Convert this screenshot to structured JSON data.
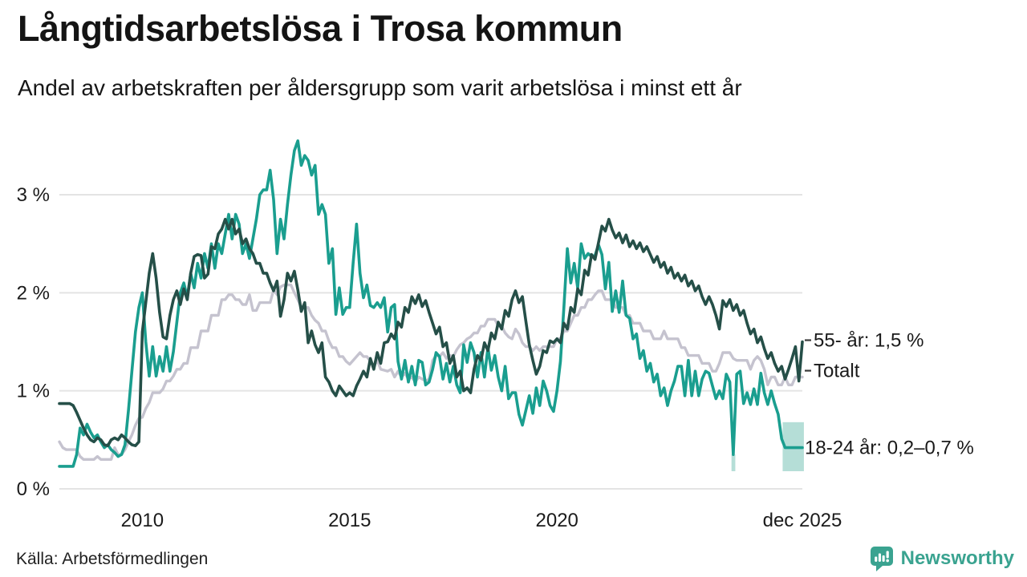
{
  "header": {
    "title": "Långtidsarbetslösa i Trosa kommun",
    "subtitle": "Andel av arbetskraften per åldersgrupp som varit arbetslösa i minst ett år"
  },
  "footer": {
    "source": "Källa: Arbetsförmedlingen",
    "brand": "Newsworthy"
  },
  "colors": {
    "youth": "#1a9e8f",
    "older": "#254f48",
    "total": "#c5c3cf",
    "band": "#b5ded7",
    "grid": "#e4e4e4",
    "axis_text": "#1b1b1b",
    "annotation_text": "#1a1a1a",
    "annotation_dash": "#3a3a3a",
    "brand_teal": "#3aa390",
    "text": "#141414"
  },
  "chart_data": {
    "type": "line",
    "title": "Långtidsarbetslösa i Trosa kommun",
    "subtitle": "Andel av arbetskraften per åldersgrupp som varit arbetslösa i minst ett år",
    "unit": "%",
    "frequency": "monthly",
    "x_start": "2008-01",
    "x_end": "2025-12",
    "ylim": [
      0,
      3.6
    ],
    "grid": true,
    "yticks": [
      {
        "value": 0,
        "label": "0 %"
      },
      {
        "value": 1,
        "label": "1 %"
      },
      {
        "value": 2,
        "label": "2 %"
      },
      {
        "value": 3,
        "label": "3 %"
      }
    ],
    "xticks": [
      {
        "t": 2010.0,
        "label": "2010"
      },
      {
        "t": 2015.0,
        "label": "2015"
      },
      {
        "t": 2020.0,
        "label": "2020"
      },
      {
        "t": 2025.9167,
        "label": "dec 2025"
      }
    ],
    "series": [
      {
        "name": "Totalt",
        "color_key": "total",
        "stroke_width": 3.4,
        "values": [
          0.48,
          0.42,
          0.4,
          0.4,
          0.4,
          0.4,
          0.33,
          0.3,
          0.3,
          0.3,
          0.3,
          0.33,
          0.3,
          0.3,
          0.3,
          0.3,
          0.42,
          0.35,
          0.35,
          0.4,
          0.48,
          0.55,
          0.65,
          0.72,
          0.73,
          0.82,
          0.88,
          0.98,
          0.98,
          0.98,
          1.02,
          1.1,
          1.1,
          1.15,
          1.22,
          1.22,
          1.28,
          1.28,
          1.44,
          1.44,
          1.44,
          1.61,
          1.61,
          1.61,
          1.77,
          1.77,
          1.77,
          1.93,
          1.93,
          1.98,
          1.98,
          1.93,
          1.93,
          1.88,
          1.88,
          1.98,
          1.82,
          1.82,
          1.9,
          1.9,
          1.9,
          1.9,
          2.03,
          1.98,
          2.06,
          2.08,
          2.08,
          2.08,
          2.0,
          1.93,
          1.85,
          1.85,
          1.85,
          1.77,
          1.72,
          1.69,
          1.61,
          1.61,
          1.51,
          1.44,
          1.44,
          1.35,
          1.35,
          1.3,
          1.27,
          1.31,
          1.35,
          1.39,
          1.35,
          1.35,
          1.3,
          1.25,
          1.31,
          1.22,
          1.21,
          1.2,
          1.22,
          1.14,
          1.2,
          1.14,
          1.18,
          1.12,
          1.14,
          1.09,
          1.14,
          1.12,
          1.1,
          1.12,
          1.31,
          1.36,
          1.35,
          1.39,
          1.33,
          1.36,
          1.35,
          1.42,
          1.47,
          1.49,
          1.53,
          1.55,
          1.59,
          1.59,
          1.66,
          1.66,
          1.73,
          1.73,
          1.73,
          1.66,
          1.66,
          1.59,
          1.55,
          1.53,
          1.63,
          1.58,
          1.49,
          1.45,
          1.45,
          1.41,
          1.45,
          1.41,
          1.45,
          1.45,
          1.45,
          1.45,
          1.53,
          1.53,
          1.61,
          1.61,
          1.69,
          1.77,
          1.77,
          1.85,
          1.85,
          1.93,
          1.93,
          1.98,
          2.02,
          2.02,
          1.93,
          1.93,
          1.93,
          1.85,
          1.85,
          1.85,
          1.77,
          1.77,
          1.69,
          1.69,
          1.69,
          1.61,
          1.61,
          1.61,
          1.53,
          1.53,
          1.53,
          1.61,
          1.53,
          1.53,
          1.53,
          1.53,
          1.44,
          1.44,
          1.36,
          1.36,
          1.36,
          1.36,
          1.28,
          1.28,
          1.28,
          1.2,
          1.2,
          1.28,
          1.39,
          1.39,
          1.39,
          1.33,
          1.31,
          1.31,
          1.31,
          1.31,
          1.22,
          1.31,
          1.35,
          1.31,
          1.22,
          1.06,
          1.14,
          1.14,
          1.06,
          1.06,
          1.14,
          1.06,
          1.06,
          1.14,
          1.14,
          1.14
        ]
      },
      {
        "name": "18-24 år",
        "color_key": "youth",
        "stroke_width": 3.6,
        "values": [
          0.23,
          0.23,
          0.23,
          0.23,
          0.23,
          0.35,
          0.62,
          0.55,
          0.66,
          0.58,
          0.52,
          0.55,
          0.48,
          0.42,
          0.45,
          0.4,
          0.37,
          0.33,
          0.35,
          0.45,
          0.8,
          1.2,
          1.6,
          1.85,
          2.0,
          1.5,
          1.15,
          1.45,
          1.15,
          1.35,
          1.2,
          1.45,
          1.2,
          1.4,
          1.7,
          2.0,
          2.1,
          1.95,
          2.2,
          2.05,
          2.3,
          2.15,
          2.4,
          2.25,
          2.5,
          2.25,
          2.5,
          2.4,
          2.6,
          2.8,
          2.55,
          2.8,
          2.7,
          2.4,
          2.5,
          2.35,
          2.55,
          2.75,
          3.0,
          3.05,
          3.05,
          3.25,
          2.95,
          2.4,
          2.75,
          2.55,
          2.9,
          3.2,
          3.45,
          3.55,
          3.3,
          3.4,
          3.35,
          3.2,
          3.3,
          2.8,
          2.9,
          2.8,
          2.3,
          2.45,
          1.78,
          2.05,
          1.78,
          1.85,
          1.85,
          2.3,
          2.7,
          2.2,
          1.95,
          2.08,
          1.87,
          1.85,
          1.9,
          1.85,
          1.95,
          1.6,
          1.85,
          1.88,
          1.3,
          1.12,
          1.31,
          1.09,
          1.25,
          1.06,
          1.31,
          1.29,
          1.06,
          1.09,
          1.22,
          1.39,
          1.35,
          1.12,
          1.28,
          1.09,
          1.25,
          1.06,
          0.98,
          1.47,
          1.29,
          1.49,
          1.39,
          1.14,
          1.39,
          1.14,
          1.44,
          1.21,
          1.36,
          1.14,
          1.0,
          1.25,
          0.92,
          0.98,
          0.98,
          0.76,
          0.65,
          0.8,
          0.95,
          0.77,
          1.03,
          0.85,
          1.1,
          1.0,
          0.85,
          0.79,
          1.0,
          1.3,
          1.85,
          2.45,
          2.1,
          2.3,
          2.05,
          2.5,
          2.35,
          2.4,
          2.37,
          2.38,
          2.49,
          2.39,
          2.04,
          2.31,
          1.81,
          2.02,
          1.8,
          2.12,
          1.77,
          1.74,
          1.53,
          1.58,
          1.33,
          1.41,
          1.2,
          1.28,
          1.09,
          1.17,
          0.95,
          1.03,
          0.85,
          1.0,
          1.1,
          1.25,
          1.25,
          0.95,
          1.31,
          0.95,
          1.2,
          0.95,
          1.12,
          1.2,
          1.18,
          1.05,
          0.92,
          1.0,
          0.92,
          1.17,
          1.09,
          0.35,
          1.17,
          1.2,
          0.87,
          0.98,
          0.86,
          1.02,
          0.86,
          1.18,
          0.98,
          0.86,
          1.0,
          0.87,
          0.76,
          0.51,
          0.42,
          0.42,
          0.42,
          0.42,
          0.42,
          0.42
        ]
      },
      {
        "name": "55- år",
        "color_key": "older",
        "stroke_width": 3.6,
        "values": [
          0.87,
          0.87,
          0.87,
          0.87,
          0.85,
          0.78,
          0.7,
          0.62,
          0.55,
          0.5,
          0.48,
          0.52,
          0.5,
          0.45,
          0.44,
          0.5,
          0.52,
          0.5,
          0.55,
          0.52,
          0.48,
          0.45,
          0.44,
          0.48,
          1.6,
          1.9,
          2.2,
          2.4,
          2.15,
          1.8,
          1.55,
          1.53,
          1.77,
          1.93,
          2.02,
          1.88,
          2.04,
          1.93,
          2.2,
          2.37,
          2.39,
          2.38,
          2.15,
          2.19,
          2.47,
          2.45,
          2.6,
          2.65,
          2.75,
          2.65,
          2.75,
          2.6,
          2.65,
          2.5,
          2.55,
          2.45,
          2.4,
          2.3,
          2.3,
          2.2,
          2.2,
          2.1,
          2.02,
          2.12,
          1.76,
          1.93,
          2.2,
          2.12,
          2.22,
          2.03,
          1.81,
          1.9,
          1.49,
          1.61,
          1.47,
          1.39,
          1.49,
          1.14,
          1.09,
          1.0,
          0.95,
          1.05,
          1.0,
          0.95,
          0.98,
          0.95,
          1.05,
          1.12,
          1.2,
          1.14,
          1.33,
          1.22,
          1.39,
          1.28,
          1.49,
          1.5,
          1.58,
          1.53,
          1.7,
          1.65,
          1.85,
          1.8,
          1.96,
          1.89,
          1.98,
          1.86,
          1.92,
          1.8,
          1.69,
          1.58,
          1.65,
          1.45,
          1.49,
          1.28,
          1.36,
          1.14,
          1.2,
          1.0,
          1.03,
          0.98,
          1.22,
          1.36,
          1.31,
          1.49,
          1.41,
          1.59,
          1.53,
          1.7,
          1.63,
          1.82,
          1.76,
          1.93,
          2.02,
          1.9,
          1.96,
          1.71,
          1.47,
          1.31,
          1.17,
          1.25,
          1.41,
          1.39,
          1.51,
          1.49,
          1.53,
          1.49,
          1.69,
          1.63,
          1.85,
          1.8,
          2.04,
          1.98,
          2.23,
          2.18,
          2.39,
          2.34,
          2.51,
          2.68,
          2.63,
          2.75,
          2.64,
          2.56,
          2.61,
          2.51,
          2.59,
          2.47,
          2.53,
          2.45,
          2.51,
          2.42,
          2.47,
          2.39,
          2.31,
          2.37,
          2.26,
          2.31,
          2.2,
          2.26,
          2.15,
          2.2,
          2.12,
          2.18,
          2.07,
          2.12,
          2.02,
          2.07,
          1.96,
          1.88,
          1.96,
          1.88,
          1.77,
          1.63,
          1.92,
          1.86,
          1.93,
          1.82,
          1.88,
          1.77,
          1.82,
          1.69,
          1.58,
          1.63,
          1.49,
          1.55,
          1.43,
          1.33,
          1.39,
          1.28,
          1.2,
          1.25,
          1.12,
          1.22,
          1.33,
          1.45,
          1.1,
          1.5
        ]
      }
    ],
    "uncertainty_bands": [
      {
        "series": "18-24 år",
        "from": "2024-04",
        "to": "2024-04",
        "low": 0.18,
        "high": 0.35,
        "i0": 194.5,
        "i1": 195.6
      },
      {
        "series": "18-24 år",
        "from": "2025-07",
        "to": "2025-12",
        "low": 0.18,
        "high": 0.68,
        "i0": 209.3,
        "i1": 215.45
      }
    ],
    "annotations": [
      {
        "label": "55- år: 1,5 %",
        "value": 1.5,
        "dy": -2,
        "dash": true,
        "text_x": 1014,
        "dash_x0": 1003,
        "dash_x1": 1011
      },
      {
        "label": "Totalt",
        "value": 1.14,
        "dy": -8,
        "dash": true,
        "text_x": 1014,
        "dash_x0": 1003,
        "dash_x1": 1011
      },
      {
        "label": "18-24 år: 0,2–0,7 %",
        "value": 0.42,
        "dy": 0,
        "dash": false,
        "text_x": 1003,
        "dash_x0": 0,
        "dash_x1": 0
      }
    ],
    "legend_position": "right-of-line-ends"
  }
}
